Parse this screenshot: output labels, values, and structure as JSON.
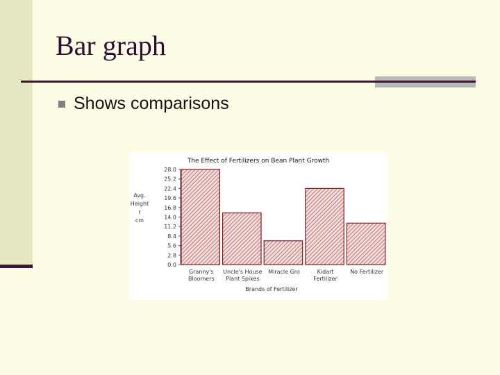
{
  "slide": {
    "title": "Bar graph",
    "bullet": "Shows comparisons"
  },
  "colors": {
    "background": "#fdfde6",
    "accent": "#3a1535",
    "bar_stroke": "#8a1a1a",
    "bar_hatch": "#b85555"
  },
  "chart_data": {
    "type": "bar",
    "title": "The Effect of Fertilizers on Bean Plant Growth",
    "xlabel": "Brands of Fertilizer",
    "ylabel_lines": [
      "Avg.",
      "Height",
      "r",
      "cm"
    ],
    "categories": [
      [
        "Granny's",
        "Bloomers"
      ],
      [
        "Uncle's House",
        "Plant Spikes"
      ],
      [
        "Miracle Gro",
        ""
      ],
      [
        "Kidart",
        "Fertilizer"
      ],
      [
        "No Fertilizer",
        ""
      ]
    ],
    "values": [
      28.0,
      15.2,
      7.0,
      22.4,
      12.2
    ],
    "yticks": [
      "28.0",
      "25.2",
      "22.4",
      "19.6",
      "16.8",
      "14.0",
      "11.2",
      "8.4",
      "5.6",
      "2.8",
      "0.0"
    ],
    "ylim": [
      0,
      28
    ],
    "grid": false
  }
}
